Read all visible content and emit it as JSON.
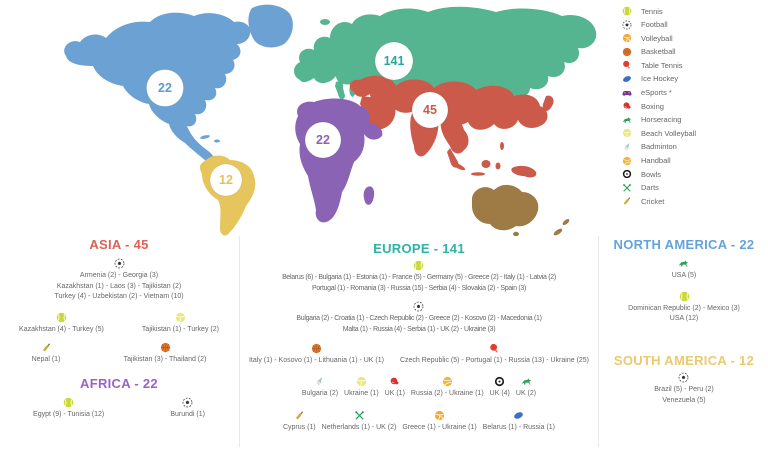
{
  "legend": {
    "items": [
      {
        "icon": "tennis",
        "label": "Tennis"
      },
      {
        "icon": "football",
        "label": "Football"
      },
      {
        "icon": "volleyball",
        "label": "Volleyball"
      },
      {
        "icon": "basketball",
        "label": "Basketball"
      },
      {
        "icon": "table-tennis",
        "label": "Table Tennis"
      },
      {
        "icon": "ice-hockey",
        "label": "Ice Hockey"
      },
      {
        "icon": "esports",
        "label": "eSports *"
      },
      {
        "icon": "boxing",
        "label": "Boxing"
      },
      {
        "icon": "horseracing",
        "label": "Horseracing"
      },
      {
        "icon": "beach-volleyball",
        "label": "Beach Volleyball"
      },
      {
        "icon": "badminton",
        "label": "Badminton"
      },
      {
        "icon": "handball",
        "label": "Handball"
      },
      {
        "icon": "bowls",
        "label": "Bowls"
      },
      {
        "icon": "darts",
        "label": "Darts"
      },
      {
        "icon": "cricket",
        "label": "Cricket"
      }
    ]
  },
  "map": {
    "continents": {
      "north_america": {
        "name": "North America",
        "color": "#6ba2d3"
      },
      "south_america": {
        "name": "South America",
        "color": "#e6c55c"
      },
      "europe": {
        "name": "Europe",
        "color": "#55b590"
      },
      "asia": {
        "name": "Asia",
        "color": "#cc5a4b"
      },
      "africa": {
        "name": "Africa",
        "color": "#8a63b4"
      },
      "oceania": {
        "name": "Oceania",
        "color": "#9e7a45"
      }
    },
    "bubbles": [
      {
        "continent": "Europe",
        "value": "141",
        "color": "#2aa79b"
      },
      {
        "continent": "Asia",
        "value": "45",
        "color": "#cc5a4b"
      },
      {
        "continent": "Africa",
        "value": "22",
        "color": "#8a63b4"
      },
      {
        "continent": "North America",
        "value": "22",
        "color": "#5b9bd0"
      },
      {
        "continent": "South America",
        "value": "12",
        "color": "#dfc25e"
      }
    ]
  },
  "chart_data": [
    {
      "type": "map-bubbles",
      "title": "Athletes by continent",
      "categories": [
        "Europe",
        "Asia",
        "North America",
        "Africa",
        "South America"
      ],
      "values": [
        141,
        45,
        22,
        22,
        12
      ]
    },
    {
      "type": "table",
      "title": "Continent / sport / country counts",
      "series": [
        {
          "name": "Asia - Football",
          "values": {
            "Armenia": 2,
            "Georgia": 3,
            "Kazakhstan": 1,
            "Laos": 3,
            "Tajikistan": 2,
            "Turkey": 4,
            "Uzbekistan": 2,
            "Vietnam": 10
          }
        },
        {
          "name": "Asia - Tennis",
          "values": {
            "Kazakhstan": 4,
            "Turkey": 5
          }
        },
        {
          "name": "Asia - Beach Volleyball",
          "values": {
            "Tajikistan": 1,
            "Turkey": 2
          }
        },
        {
          "name": "Asia - Cricket",
          "values": {
            "Nepal": 1
          }
        },
        {
          "name": "Asia - Basketball",
          "values": {
            "Tajikistan": 3,
            "Thailand": 2
          }
        },
        {
          "name": "Africa - Tennis",
          "values": {
            "Egypt": 9,
            "Tunisia": 12
          }
        },
        {
          "name": "Africa - Football",
          "values": {
            "Burundi": 1
          }
        },
        {
          "name": "Europe - Tennis",
          "values": {
            "Belarus": 6,
            "Bulgaria": 1,
            "Estonia": 1,
            "France": 5,
            "Germany": 5,
            "Greece": 2,
            "Italy": 1,
            "Latvia": 2,
            "Portugal": 1,
            "Romania": 3,
            "Russia": 15,
            "Serbia": 4,
            "Slovakia": 2,
            "Spain": 3
          }
        },
        {
          "name": "Europe - Football",
          "values": {
            "Bulgaria": 2,
            "Croatia": 1,
            "Czech Republic": 2,
            "Greece": 2,
            "Kosovo": 2,
            "Macedonia": 1,
            "Malta": 1,
            "Russia": 4,
            "Serbia": 1,
            "UK": 2,
            "Ukraine": 3
          }
        },
        {
          "name": "Europe - Basketball",
          "values": {
            "Italy": 1,
            "Kosovo": 1,
            "Lithuania": 1,
            "UK": 1
          }
        },
        {
          "name": "Europe - Table Tennis",
          "values": {
            "Czech Republic": 5,
            "Portugal": 1,
            "Russia": 13,
            "Ukraine": 25
          }
        },
        {
          "name": "Europe - Badminton",
          "values": {
            "Bulgaria": 2
          }
        },
        {
          "name": "Europe - Beach Volleyball",
          "values": {
            "Ukraine": 1
          }
        },
        {
          "name": "Europe - Boxing",
          "values": {
            "UK": 1
          }
        },
        {
          "name": "Europe - Handball",
          "values": {
            "Russia": 2,
            "Ukraine": 1
          }
        },
        {
          "name": "Europe - Bowls",
          "values": {
            "UK": 4
          }
        },
        {
          "name": "Europe - Horseracing",
          "values": {
            "UK": 2
          }
        },
        {
          "name": "Europe - Cricket",
          "values": {
            "Cyprus": 1
          }
        },
        {
          "name": "Europe - Darts",
          "values": {
            "Netherlands": 1,
            "UK": 2
          }
        },
        {
          "name": "Europe - Volleyball",
          "values": {
            "Greece": 1,
            "Ukraine": 1
          }
        },
        {
          "name": "Europe - Ice Hockey",
          "values": {
            "Belarus": 1,
            "Russia": 1
          }
        },
        {
          "name": "North America - Horseracing",
          "values": {
            "USA": 5
          }
        },
        {
          "name": "North America - Tennis",
          "values": {
            "Dominican Republic": 2,
            "Mexico": 3,
            "USA": 12
          }
        },
        {
          "name": "South America - Football",
          "values": {
            "Brazil": 5,
            "Peru": 2,
            "Venezuela": 5
          }
        }
      ]
    }
  ],
  "sections": {
    "asia": {
      "title": "ASIA - 45",
      "color": "#de6156",
      "rows": [
        {
          "entries": [
            {
              "icon": "football",
              "lines": [
                "Armenia (2) - Georgia (3)",
                "Kazakhstan (1) - Laos (3) - Tajikistan (2)",
                "Turkey (4) - Uzbekistan (2) - Vietnam (10)"
              ]
            }
          ]
        },
        {
          "entries": [
            {
              "icon": "tennis",
              "lines": [
                "Kazakhstan (4) - Turkey (5)"
              ]
            },
            {
              "icon": "beach-volleyball",
              "lines": [
                "Tajikistan (1) - Turkey (2)"
              ]
            }
          ]
        },
        {
          "entries": [
            {
              "icon": "cricket",
              "lines": [
                "Nepal (1)"
              ]
            },
            {
              "icon": "basketball",
              "lines": [
                "Tajikistan (3) - Thailand (2)"
              ]
            }
          ]
        }
      ]
    },
    "africa": {
      "title": "AFRICA - 22",
      "color": "#9b61c9",
      "rows": [
        {
          "entries": [
            {
              "icon": "tennis",
              "lines": [
                "Egypt (9) - Tunisia (12)"
              ]
            },
            {
              "icon": "football",
              "lines": [
                "Burundi (1)"
              ]
            }
          ]
        }
      ]
    },
    "europe": {
      "title": "EUROPE - 141",
      "color": "#2fb3a4",
      "rows": [
        {
          "entries": [
            {
              "icon": "tennis",
              "lines": [
                "Belarus (6) - Bulgaria (1) - Estonia (1) - France (5) - Germany (5) - Greece (2) - Italy (1) - Latvia (2)",
                "Portugal (1) - Romania (3) - Russia (15) - Serbia (4) - Slovakia (2) - Spain (3)"
              ]
            }
          ]
        },
        {
          "entries": [
            {
              "icon": "football",
              "lines": [
                "Bulgaria (2) - Croatia (1) - Czech Republic (2) - Greece (2) - Kosovo (2) - Macedonia (1)",
                "Malta (1) - Russia (4) - Serbia (1) - UK (2) - Ukraine (3)"
              ]
            }
          ]
        },
        {
          "entries": [
            {
              "icon": "basketball",
              "lines": [
                "Italy (1) - Kosovo (1) - Lithuania (1) - UK (1)"
              ]
            },
            {
              "icon": "table-tennis",
              "lines": [
                "Czech Republic (5) - Portugal (1) - Russia (13) - Ukraine (25)"
              ]
            }
          ]
        },
        {
          "entries": [
            {
              "icon": "badminton",
              "lines": [
                "Bulgaria (2)"
              ]
            },
            {
              "icon": "beach-volleyball",
              "lines": [
                "Ukraine (1)"
              ]
            },
            {
              "icon": "boxing",
              "lines": [
                "UK (1)"
              ]
            },
            {
              "icon": "handball",
              "lines": [
                "Russia (2) - Ukraine (1)"
              ]
            },
            {
              "icon": "bowls",
              "lines": [
                "UK (4)"
              ]
            },
            {
              "icon": "horseracing",
              "lines": [
                "UK (2)"
              ]
            }
          ]
        },
        {
          "entries": [
            {
              "icon": "cricket",
              "lines": [
                "Cyprus (1)"
              ]
            },
            {
              "icon": "darts",
              "lines": [
                "Netherlands (1) - UK (2)"
              ]
            },
            {
              "icon": "volleyball",
              "lines": [
                "Greece (1) - Ukraine (1)"
              ]
            },
            {
              "icon": "ice-hockey",
              "lines": [
                "Belarus (1) - Russia (1)"
              ]
            }
          ]
        }
      ]
    },
    "north_america": {
      "title": "NORTH AMERICA - 22",
      "color": "#64a3da",
      "rows": [
        {
          "entries": [
            {
              "icon": "horseracing",
              "lines": [
                "USA (5)"
              ]
            }
          ]
        },
        {
          "entries": [
            {
              "icon": "tennis",
              "lines": [
                "Dominican Republic (2) - Mexico (3)",
                "USA (12)"
              ]
            }
          ]
        }
      ]
    },
    "south_america": {
      "title": "SOUTH AMERICA - 12",
      "color": "#eac96f",
      "rows": [
        {
          "entries": [
            {
              "icon": "football",
              "lines": [
                "Brazil (5) - Peru (2)",
                "Venezuela (5)"
              ]
            }
          ]
        }
      ]
    }
  }
}
